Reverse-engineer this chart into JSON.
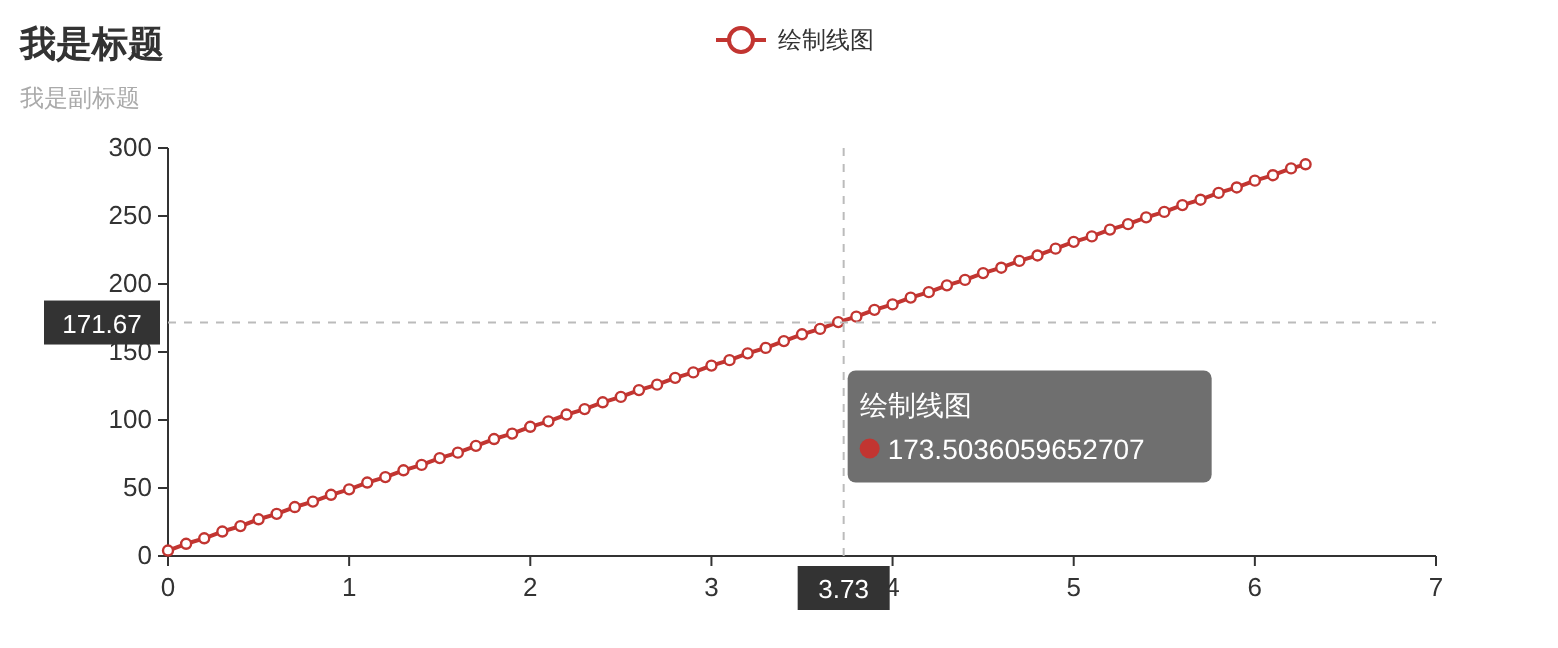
{
  "chart_data": {
    "type": "line",
    "title": "我是标题",
    "subtitle": "我是副标题",
    "legend": "top",
    "marker": "circle",
    "line_style": "solid",
    "grid": false,
    "xlim": [
      0,
      7
    ],
    "xticks": [
      0,
      1,
      2,
      3,
      4,
      5,
      6,
      7
    ],
    "ylim": [
      0,
      300
    ],
    "yticks": [
      0,
      50,
      100,
      150,
      200,
      250,
      300
    ],
    "series": [
      {
        "name": "绘制线图",
        "color": "#c23531",
        "x": [
          0,
          0.1,
          0.2,
          0.3,
          0.4,
          0.5,
          0.6,
          0.7,
          0.8,
          0.9,
          1.0,
          1.1,
          1.2,
          1.3,
          1.4,
          1.5,
          1.6,
          1.7,
          1.8,
          1.9,
          2.0,
          2.1,
          2.2,
          2.3,
          2.4,
          2.5,
          2.6,
          2.7,
          2.8,
          2.9,
          3.0,
          3.1,
          3.2,
          3.3,
          3.4,
          3.5,
          3.6,
          3.7,
          3.8,
          3.9,
          4.0,
          4.1,
          4.2,
          4.3,
          4.4,
          4.5,
          4.6,
          4.7,
          4.8,
          4.9,
          5.0,
          5.1,
          5.2,
          5.3,
          5.4,
          5.5,
          5.6,
          5.7,
          5.8,
          5.9,
          6.0,
          6.1,
          6.2,
          6.28
        ],
        "values": [
          4,
          9,
          13,
          18,
          22,
          27,
          31,
          36,
          40,
          45,
          49,
          54,
          58,
          63,
          67,
          72,
          76,
          81,
          86,
          90,
          95,
          99,
          104,
          108,
          113,
          117,
          122,
          126,
          131,
          135,
          140,
          144,
          149,
          153,
          158,
          163,
          167,
          172,
          176,
          181,
          185,
          190,
          194,
          199,
          203,
          208,
          212,
          217,
          221,
          226,
          231,
          235,
          240,
          244,
          249,
          253,
          258,
          262,
          267,
          271,
          276,
          280,
          285,
          288
        ]
      }
    ],
    "ref_lines": [
      {
        "axis": "x",
        "value": 3.73,
        "label": "3.73",
        "color": "#bbbbbb",
        "line_style": "dashed"
      },
      {
        "axis": "y",
        "value": 171.67,
        "label": "171.67",
        "color": "#bbbbbb",
        "line_style": "dashed"
      }
    ],
    "annotations": [
      "绘制线图",
      "173.5036059652707"
    ]
  }
}
